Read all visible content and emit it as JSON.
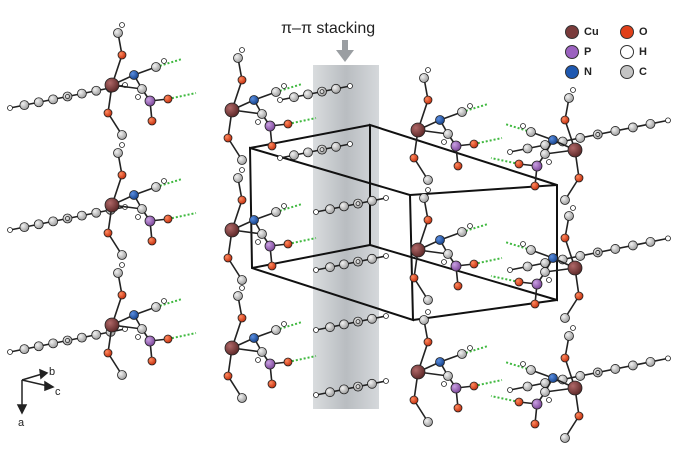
{
  "annotation": {
    "stacking": "π–π stacking"
  },
  "legend": [
    {
      "symbol": "Cu",
      "color": "#7a3b3b"
    },
    {
      "symbol": "O",
      "color": "#e0401a"
    },
    {
      "symbol": "P",
      "color": "#9b62c0"
    },
    {
      "symbol": "H",
      "color": "#ffffff"
    },
    {
      "symbol": "N",
      "color": "#1e58b0"
    },
    {
      "symbol": "C",
      "color": "#c4c4c4"
    }
  ],
  "axes": {
    "a": "a",
    "b": "b",
    "c": "c"
  },
  "colors": {
    "bond": "#222222",
    "hbond": "#3fb83f",
    "stack_band": "#b8bcc0",
    "cell_edge": "#111111"
  }
}
